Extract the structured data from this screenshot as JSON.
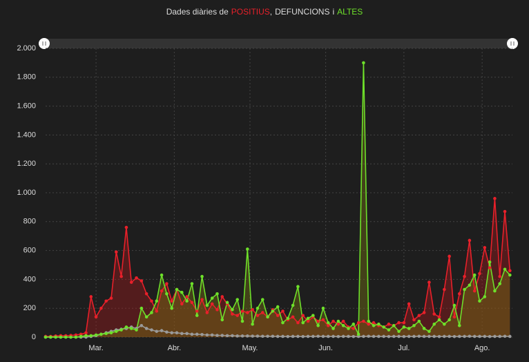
{
  "chart_data": {
    "type": "line",
    "title_lead": "Dades diàries de",
    "title_sep": ",",
    "title_join": "i",
    "x": [
      0,
      2,
      4,
      6,
      8,
      10,
      12,
      14,
      16,
      18,
      20,
      22,
      24,
      26,
      28,
      30,
      32,
      34,
      36,
      38,
      40,
      42,
      44,
      46,
      48,
      50,
      52,
      54,
      56,
      58,
      60,
      62,
      64,
      66,
      68,
      70,
      72,
      74,
      76,
      78,
      80,
      82,
      84,
      86,
      88,
      90,
      92,
      94,
      96,
      98,
      100,
      102,
      104,
      106,
      108,
      110,
      112,
      114,
      116,
      118,
      120,
      122,
      124,
      126,
      128,
      130,
      132,
      134,
      136,
      138,
      140,
      142,
      144,
      146,
      148,
      150,
      152,
      154,
      156,
      158,
      160,
      162,
      164,
      166,
      168,
      170,
      172,
      174,
      176,
      178,
      180,
      182,
      184
    ],
    "series": [
      {
        "name": "POSITIUS",
        "color": "#e8202a",
        "area": "rgba(170,25,30,0.38)",
        "values": [
          5,
          5,
          8,
          10,
          10,
          12,
          15,
          20,
          30,
          280,
          140,
          200,
          250,
          270,
          590,
          420,
          760,
          380,
          410,
          390,
          300,
          250,
          180,
          320,
          370,
          250,
          330,
          230,
          280,
          240,
          180,
          260,
          170,
          230,
          190,
          280,
          230,
          160,
          150,
          180,
          170,
          190,
          150,
          170,
          140,
          190,
          150,
          180,
          120,
          140,
          100,
          150,
          110,
          140,
          110,
          120,
          80,
          110,
          90,
          110,
          70,
          60,
          100,
          110,
          90,
          100,
          80,
          70,
          90,
          80,
          100,
          100,
          230,
          120,
          150,
          170,
          380,
          160,
          140,
          330,
          560,
          140,
          300,
          420,
          670,
          320,
          440,
          620,
          480,
          960,
          420,
          870,
          460
        ]
      },
      {
        "name": "DEFUNCIONS",
        "color": "#9a9a9a",
        "values": [
          0,
          0,
          0,
          0,
          0,
          0,
          0,
          0,
          0,
          5,
          10,
          20,
          30,
          40,
          50,
          55,
          60,
          70,
          60,
          80,
          60,
          50,
          40,
          45,
          35,
          30,
          30,
          25,
          25,
          20,
          20,
          18,
          15,
          15,
          12,
          12,
          10,
          10,
          8,
          8,
          8,
          7,
          7,
          6,
          6,
          6,
          5,
          5,
          4,
          5,
          5,
          4,
          5,
          5,
          6,
          5,
          5,
          5,
          4,
          5,
          5,
          4,
          5,
          5,
          6,
          5,
          5,
          5,
          4,
          5,
          5,
          4,
          5,
          5,
          6,
          5,
          5,
          5,
          4,
          5,
          5,
          4,
          5,
          5,
          6,
          5,
          5,
          5,
          4,
          5,
          5,
          6,
          5
        ]
      },
      {
        "name": "ALTES",
        "color": "#6ee02a",
        "area": "rgba(120,115,20,0.42)",
        "values": [
          0,
          0,
          0,
          0,
          0,
          0,
          0,
          5,
          10,
          10,
          15,
          20,
          25,
          30,
          40,
          50,
          70,
          60,
          50,
          200,
          140,
          170,
          250,
          430,
          300,
          200,
          330,
          310,
          250,
          370,
          150,
          420,
          220,
          270,
          300,
          120,
          240,
          190,
          260,
          110,
          610,
          90,
          200,
          260,
          140,
          180,
          210,
          100,
          130,
          220,
          350,
          100,
          130,
          150,
          80,
          200,
          100,
          60,
          110,
          80,
          60,
          90,
          20,
          1900,
          110,
          80,
          90,
          70,
          50,
          80,
          40,
          70,
          60,
          80,
          110,
          60,
          40,
          90,
          120,
          90,
          120,
          220,
          80,
          330,
          360,
          430,
          250,
          280,
          520,
          320,
          370,
          470,
          430
        ]
      }
    ],
    "xlim": [
      0,
      185
    ],
    "xticks": [
      {
        "value": 20,
        "label": "Mar."
      },
      {
        "value": 51,
        "label": "Abr."
      },
      {
        "value": 81,
        "label": "May."
      },
      {
        "value": 111,
        "label": "Jun."
      },
      {
        "value": 142,
        "label": "Jul."
      },
      {
        "value": 173,
        "label": "Ago."
      }
    ],
    "ylim": [
      0,
      2000
    ],
    "yticks": [
      0,
      200,
      400,
      600,
      800,
      {
        "value": 1000,
        "label": "1.000"
      },
      {
        "value": 1200,
        "label": "1.200"
      },
      {
        "value": 1400,
        "label": "1.400"
      },
      {
        "value": 1600,
        "label": "1.600"
      },
      {
        "value": 1800,
        "label": "1.800"
      },
      {
        "value": 2000,
        "label": "2.000"
      }
    ],
    "grid": true
  }
}
